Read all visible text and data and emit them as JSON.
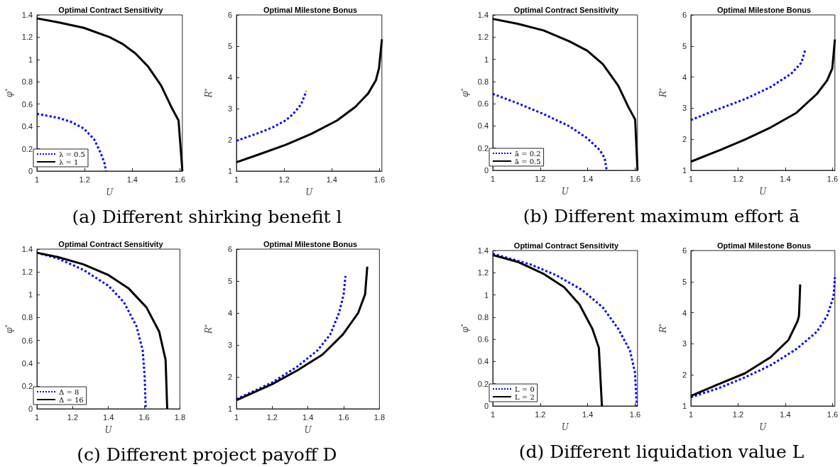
{
  "chart_data": [
    {
      "type": "line",
      "title": "Optimal Contract Sensitivity",
      "xlabel": "U",
      "ylabel": "φ$^{*}$",
      "xlim": [
        1,
        1.61
      ],
      "xticks": [
        1,
        1.2,
        1.4,
        1.6
      ],
      "ylim": [
        0,
        1.4
      ],
      "yticks": [
        0,
        0.2,
        0.4,
        0.6,
        0.8,
        1,
        1.2,
        1.4
      ],
      "legend": "bottom left",
      "annotations": [
        "(a) Different shirking benefit l"
      ],
      "series": [
        {
          "name": "λ = 0.5",
          "color": "#0000ff",
          "line_style": "dotted",
          "x": [
            1,
            1.09,
            1.143,
            1.197,
            1.24,
            1.267,
            1.284,
            1.289
          ],
          "values": [
            0.513,
            0.477,
            0.441,
            0.381,
            0.284,
            0.164,
            0.067,
            0
          ]
        },
        {
          "name": "λ = 1",
          "color": "#000000",
          "line_style": "solid",
          "x": [
            1,
            1.09,
            1.197,
            1.305,
            1.359,
            1.413,
            1.467,
            1.521,
            1.564,
            1.594,
            1.61
          ],
          "values": [
            1.369,
            1.333,
            1.284,
            1.2,
            1.14,
            1.055,
            0.935,
            0.766,
            0.573,
            0.453,
            0
          ]
        }
      ]
    },
    {
      "type": "line",
      "title": "Optimal Milestone Bonus",
      "xlabel": "U",
      "ylabel": "R$^{*}$",
      "xlim": [
        1,
        1.61
      ],
      "xticks": [
        1,
        1.2,
        1.4,
        1.6
      ],
      "ylim": [
        1,
        6
      ],
      "yticks": [
        1,
        2,
        3,
        4,
        5,
        6
      ],
      "series": [
        {
          "color": "#0000ff",
          "line_style": "dotted",
          "x": [
            1,
            1.097,
            1.152,
            1.206,
            1.238,
            1.271,
            1.293
          ],
          "values": [
            1.97,
            2.23,
            2.4,
            2.62,
            2.83,
            3.13,
            3.56
          ]
        },
        {
          "color": "#000000",
          "line_style": "solid",
          "x": [
            1,
            1.097,
            1.206,
            1.314,
            1.422,
            1.498,
            1.552,
            1.585,
            1.598,
            1.61
          ],
          "values": [
            1.28,
            1.54,
            1.84,
            2.19,
            2.62,
            3.05,
            3.48,
            3.91,
            4.3,
            5.22
          ]
        }
      ]
    },
    {
      "type": "line",
      "title": "Optimal Contract Sensitivity",
      "xlabel": "U",
      "ylabel": "φ$^{*}$",
      "xlim": [
        1,
        1.61
      ],
      "xticks": [
        1,
        1.2,
        1.4,
        1.6
      ],
      "ylim": [
        0,
        1.4
      ],
      "yticks": [
        0,
        0.2,
        0.4,
        0.6,
        0.8,
        1,
        1.2,
        1.4
      ],
      "legend": "bottom left",
      "annotations": [
        "(b) Different maximum effort ā"
      ],
      "series": [
        {
          "name": "ā = 0.2",
          "color": "#0000ff",
          "line_style": "dotted",
          "x": [
            1,
            1.105,
            1.214,
            1.322,
            1.398,
            1.452,
            1.472,
            1.48
          ],
          "values": [
            0.689,
            0.604,
            0.507,
            0.398,
            0.289,
            0.18,
            0.107,
            0
          ]
        },
        {
          "name": "ā = 0.5",
          "color": "#000000",
          "line_style": "solid",
          "x": [
            1,
            1.105,
            1.214,
            1.322,
            1.398,
            1.464,
            1.529,
            1.572,
            1.6,
            1.61
          ],
          "values": [
            1.364,
            1.32,
            1.26,
            1.163,
            1.078,
            0.956,
            0.762,
            0.568,
            0.459,
            0
          ]
        }
      ]
    },
    {
      "type": "line",
      "title": "Optimal Milestone Bonus",
      "xlabel": "U",
      "ylabel": "R$^{*}$",
      "xlim": [
        1,
        1.61
      ],
      "xticks": [
        1,
        1.2,
        1.4,
        1.6
      ],
      "ylim": [
        1,
        6
      ],
      "yticks": [
        1,
        2,
        3,
        4,
        5,
        6
      ],
      "series": [
        {
          "color": "#0000ff",
          "line_style": "dotted",
          "x": [
            1,
            1.12,
            1.229,
            1.338,
            1.425,
            1.468,
            1.485
          ],
          "values": [
            2.62,
            2.98,
            3.29,
            3.68,
            4.11,
            4.46,
            4.89
          ]
        },
        {
          "color": "#000000",
          "line_style": "solid",
          "x": [
            1,
            1.12,
            1.229,
            1.338,
            1.447,
            1.534,
            1.577,
            1.599,
            1.61
          ],
          "values": [
            1.28,
            1.64,
            1.99,
            2.38,
            2.85,
            3.46,
            3.89,
            4.28,
            5.21
          ]
        }
      ]
    },
    {
      "type": "line",
      "title": "Optimal Contract Sensitivity",
      "xlabel": "U",
      "ylabel": "φ$^{*}$",
      "xlim": [
        1,
        1.8
      ],
      "xticks": [
        1,
        1.2,
        1.4,
        1.6,
        1.8
      ],
      "ylim": [
        0,
        1.4
      ],
      "yticks": [
        0,
        0.2,
        0.4,
        0.6,
        0.8,
        1,
        1.2,
        1.4
      ],
      "legend": "bottom left",
      "annotations": [
        "(c) Different project payoff D"
      ],
      "series": [
        {
          "name": "Δ = 8",
          "color": "#0000ff",
          "line_style": "dotted",
          "x": [
            1,
            1.118,
            1.259,
            1.401,
            1.486,
            1.557,
            1.592,
            1.603,
            1.609
          ],
          "values": [
            1.368,
            1.318,
            1.219,
            1.078,
            0.936,
            0.724,
            0.512,
            0.276,
            0
          ]
        },
        {
          "name": "Δ = 16",
          "color": "#000000",
          "line_style": "solid",
          "x": [
            1,
            1.118,
            1.259,
            1.401,
            1.514,
            1.613,
            1.684,
            1.72,
            1.729
          ],
          "values": [
            1.368,
            1.33,
            1.267,
            1.172,
            1.054,
            0.889,
            0.677,
            0.429,
            0
          ]
        }
      ]
    },
    {
      "type": "line",
      "title": "Optimal Milestone Bonus",
      "xlabel": "U",
      "ylabel": "R$^{*}$",
      "xlim": [
        1,
        1.8
      ],
      "xticks": [
        1,
        1.2,
        1.4,
        1.6,
        1.8
      ],
      "ylim": [
        1,
        6
      ],
      "yticks": [
        1,
        2,
        3,
        4,
        5,
        6
      ],
      "series": [
        {
          "color": "#0000ff",
          "line_style": "dotted",
          "x": [
            1,
            1.199,
            1.34,
            1.454,
            1.525,
            1.574,
            1.6,
            1.61
          ],
          "values": [
            1.3,
            1.82,
            2.32,
            2.83,
            3.33,
            4.0,
            4.59,
            5.16
          ]
        },
        {
          "color": "#000000",
          "line_style": "solid",
          "x": [
            1,
            1.199,
            1.34,
            1.482,
            1.596,
            1.681,
            1.72,
            1.732
          ],
          "values": [
            1.27,
            1.77,
            2.2,
            2.7,
            3.33,
            4.0,
            4.59,
            5.45
          ]
        }
      ]
    },
    {
      "type": "line",
      "title": "Optimal Contract Sensitivity",
      "xlabel": "U",
      "ylabel": "φ$^{*}$",
      "xlim": [
        1,
        1.61
      ],
      "xticks": [
        1,
        1.2,
        1.4,
        1.6
      ],
      "ylim": [
        0,
        1.4
      ],
      "yticks": [
        0,
        0.2,
        0.4,
        0.6,
        0.8,
        1,
        1.2,
        1.4
      ],
      "legend": "bottom left",
      "annotations": [
        "(d) Different liquidation value L"
      ],
      "series": [
        {
          "name": "L = 0",
          "color": "#0000ff",
          "line_style": "dotted",
          "x": [
            1,
            1.16,
            1.268,
            1.377,
            1.464,
            1.529,
            1.578,
            1.599,
            1.607
          ],
          "values": [
            1.371,
            1.274,
            1.177,
            1.044,
            0.887,
            0.694,
            0.5,
            0.307,
            0
          ]
        },
        {
          "name": "L = 2",
          "color": "#000000",
          "line_style": "solid",
          "x": [
            1,
            1.105,
            1.214,
            1.301,
            1.366,
            1.42,
            1.447,
            1.46
          ],
          "values": [
            1.359,
            1.298,
            1.19,
            1.069,
            0.912,
            0.694,
            0.525,
            0
          ]
        }
      ]
    },
    {
      "type": "line",
      "title": "Optimal Milestone Bonus",
      "xlabel": "U",
      "ylabel": "R$^{*}$",
      "xlim": [
        1,
        1.61
      ],
      "xticks": [
        1,
        1.2,
        1.4,
        1.6
      ],
      "ylim": [
        1,
        6
      ],
      "yticks": [
        1,
        2,
        3,
        4,
        5,
        6
      ],
      "series": [
        {
          "color": "#0000ff",
          "line_style": "dotted",
          "x": [
            1,
            1.12,
            1.229,
            1.338,
            1.447,
            1.534,
            1.577,
            1.604,
            1.61
          ],
          "values": [
            1.28,
            1.58,
            1.92,
            2.31,
            2.83,
            3.39,
            3.9,
            4.51,
            5.14
          ]
        },
        {
          "color": "#000000",
          "line_style": "solid",
          "x": [
            1,
            1.12,
            1.229,
            1.338,
            1.414,
            1.452,
            1.458,
            1.463
          ],
          "values": [
            1.32,
            1.71,
            2.05,
            2.57,
            3.13,
            3.73,
            3.9,
            4.91
          ]
        }
      ]
    }
  ]
}
